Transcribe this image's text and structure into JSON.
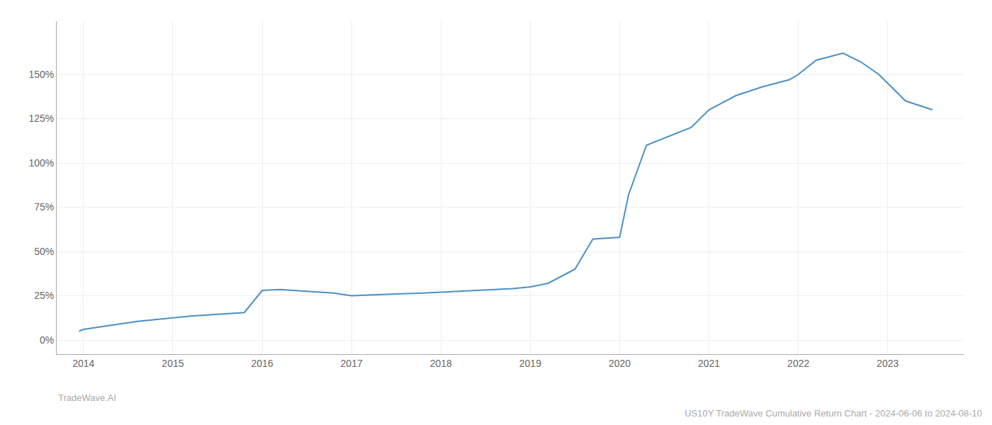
{
  "chart_data": {
    "type": "line",
    "title": "US10Y TradeWave Cumulative Return Chart - 2024-06-06 to 2024-08-10",
    "annotations": [
      "TradeWave.AI"
    ],
    "x": [
      2013.95,
      2014.0,
      2014.2,
      2014.4,
      2014.6,
      2014.8,
      2015.0,
      2015.2,
      2015.5,
      2015.8,
      2016.0,
      2016.2,
      2016.5,
      2016.8,
      2017.0,
      2017.2,
      2017.5,
      2017.8,
      2018.0,
      2018.2,
      2018.5,
      2018.8,
      2019.0,
      2019.2,
      2019.5,
      2019.7,
      2020.0,
      2020.1,
      2020.3,
      2020.5,
      2020.8,
      2021.0,
      2021.3,
      2021.6,
      2021.9,
      2022.0,
      2022.2,
      2022.5,
      2022.7,
      2022.9,
      2023.2,
      2023.5
    ],
    "values": [
      5.0,
      6.0,
      7.5,
      9.0,
      10.5,
      11.5,
      12.5,
      13.5,
      14.5,
      15.5,
      28.0,
      28.5,
      27.5,
      26.5,
      25.0,
      25.5,
      26.0,
      26.5,
      27.0,
      27.5,
      28.0,
      29.0,
      30.0,
      32.0,
      40.0,
      57.0,
      58.0,
      82.0,
      110.0,
      114.0,
      120.0,
      130.0,
      138.0,
      143.0,
      147.0,
      150.0,
      158.0,
      162.0,
      157.0,
      150.0,
      135.0,
      130.0
    ],
    "color": "#4a90c4",
    "xlim": [
      2013.7,
      2023.85
    ],
    "xticks": [
      2014,
      2015,
      2016,
      2017,
      2018,
      2019,
      2020,
      2021,
      2022,
      2023
    ],
    "ylim": [
      -8,
      180
    ],
    "yticks": [
      {
        "value": 0,
        "label": "0%"
      },
      {
        "value": 25,
        "label": "25%"
      },
      {
        "value": 50,
        "label": "50%"
      },
      {
        "value": 75,
        "label": "75%"
      },
      {
        "value": 100,
        "label": "100%"
      },
      {
        "value": 125,
        "label": "125%"
      },
      {
        "value": 150,
        "label": "150%"
      }
    ],
    "grid": true
  }
}
